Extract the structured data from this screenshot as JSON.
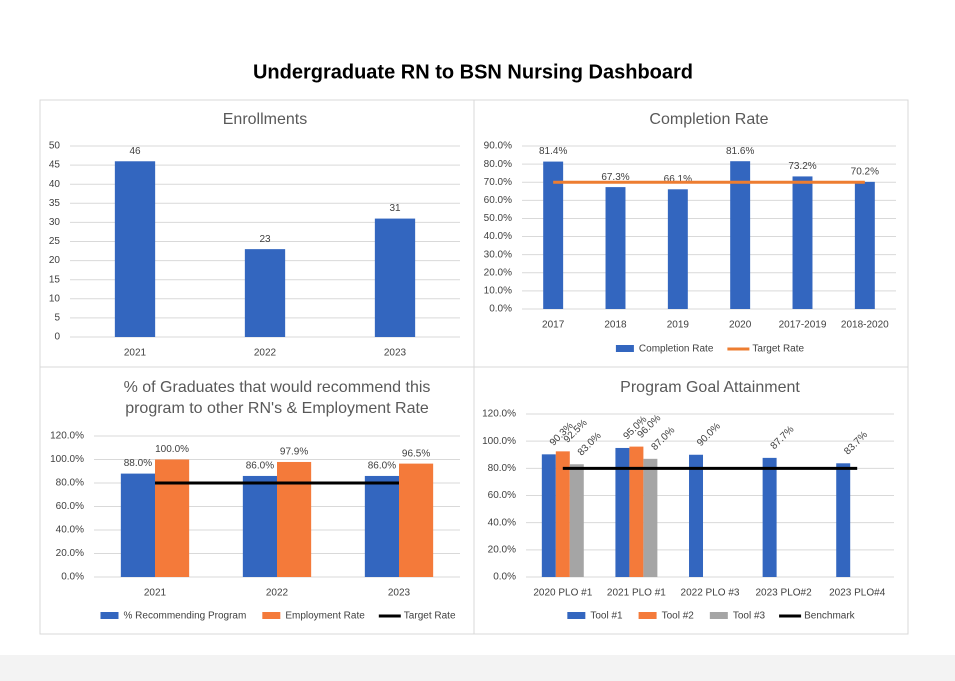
{
  "title": "Undergraduate RN to BSN Nursing Dashboard",
  "chart_data": [
    {
      "type": "bar",
      "title": "Enrollments",
      "categories": [
        "2021",
        "2022",
        "2023"
      ],
      "values": [
        46,
        23,
        31
      ],
      "color": "#3366bf",
      "ylim": [
        0,
        50
      ],
      "yticks": [
        0,
        5,
        10,
        15,
        20,
        25,
        30,
        35,
        40,
        45,
        50
      ],
      "grid": true
    },
    {
      "type": "bar",
      "title": "Completion Rate",
      "categories": [
        "2017",
        "2018",
        "2019",
        "2020",
        "2017-2019",
        "2018-2020"
      ],
      "series": [
        {
          "name": "Completion Rate",
          "color": "#3366bf",
          "values": [
            81.4,
            67.3,
            66.1,
            81.6,
            73.2,
            70.2
          ],
          "value_labels": [
            "81.4%",
            "67.3%",
            "66.1%",
            "81.6%",
            "73.2%",
            "70.2%"
          ]
        },
        {
          "name": "Target Rate",
          "type": "line",
          "color": "#ed7d31",
          "values": [
            70,
            70,
            70,
            70,
            70,
            70
          ]
        }
      ],
      "ylim": [
        0,
        90
      ],
      "yticks": [
        {
          "value": 0,
          "label": "0.0%"
        },
        {
          "value": 10,
          "label": "10.0%"
        },
        {
          "value": 20,
          "label": "20.0%"
        },
        {
          "value": 30,
          "label": "30.0%"
        },
        {
          "value": 40,
          "label": "40.0%"
        },
        {
          "value": 50,
          "label": "50.0%"
        },
        {
          "value": 60,
          "label": "60.0%"
        },
        {
          "value": 70,
          "label": "70.0%"
        },
        {
          "value": 80,
          "label": "80.0%"
        },
        {
          "value": 90,
          "label": "90.0%"
        }
      ],
      "grid": true,
      "legend": "bottom"
    },
    {
      "type": "bar",
      "title": "% of Graduates that would recommend this program to other RN's & Employment Rate",
      "categories": [
        "2021",
        "2022",
        "2023"
      ],
      "series": [
        {
          "name": "% Recommending Program",
          "color": "#3366bf",
          "values": [
            88,
            86,
            86
          ],
          "value_labels": [
            "88.0%",
            "86.0%",
            "86.0%"
          ]
        },
        {
          "name": "Employment Rate",
          "color": "#f47a3a",
          "values": [
            100,
            97.9,
            96.5
          ],
          "value_labels": [
            "100.0%",
            "97.9%",
            "96.5%"
          ]
        },
        {
          "name": "Target Rate",
          "type": "line",
          "color": "#000000",
          "values": [
            80,
            80,
            80
          ]
        }
      ],
      "ylim": [
        0,
        120
      ],
      "yticks": [
        {
          "value": 0,
          "label": "0.0%"
        },
        {
          "value": 20,
          "label": "20.0%"
        },
        {
          "value": 40,
          "label": "40.0%"
        },
        {
          "value": 60,
          "label": "60.0%"
        },
        {
          "value": 80,
          "label": "80.0%"
        },
        {
          "value": 100,
          "label": "100.0%"
        },
        {
          "value": 120,
          "label": "120.0%"
        }
      ],
      "grid": true,
      "legend": "bottom"
    },
    {
      "type": "bar",
      "title": "Program Goal Attainment",
      "categories": [
        "2020 PLO #1",
        "2021 PLO #1",
        "2022 PLO #3",
        "2023 PLO#2",
        "2023 PLO#4"
      ],
      "series": [
        {
          "name": "Tool #1",
          "color": "#3366bf",
          "values": [
            90.3,
            95.0,
            90.0,
            87.7,
            83.7
          ],
          "value_labels": [
            "90.3%",
            "95.0%",
            "90.0%",
            "87.7%",
            "83.7%"
          ]
        },
        {
          "name": "Tool #2",
          "color": "#f47a3a",
          "values": [
            92.5,
            96.0,
            null,
            null,
            null
          ],
          "value_labels": [
            "92.5%",
            "96.0%",
            null,
            null,
            null
          ]
        },
        {
          "name": "Tool #3",
          "color": "#a5a5a5",
          "values": [
            83.0,
            87.0,
            null,
            null,
            null
          ],
          "value_labels": [
            "83.0%",
            "87.0%",
            null,
            null,
            null
          ]
        },
        {
          "name": "Benchmark",
          "type": "line",
          "color": "#000000",
          "values": [
            80,
            80,
            80,
            80,
            80
          ]
        }
      ],
      "ylim": [
        0,
        120
      ],
      "yticks": [
        {
          "value": 0,
          "label": "0.0%"
        },
        {
          "value": 20,
          "label": "20.0%"
        },
        {
          "value": 40,
          "label": "40.0%"
        },
        {
          "value": 60,
          "label": "60.0%"
        },
        {
          "value": 80,
          "label": "80.0%"
        },
        {
          "value": 100,
          "label": "100.0%"
        },
        {
          "value": 120,
          "label": "120.0%"
        }
      ],
      "grid": true,
      "legend": "bottom"
    }
  ]
}
